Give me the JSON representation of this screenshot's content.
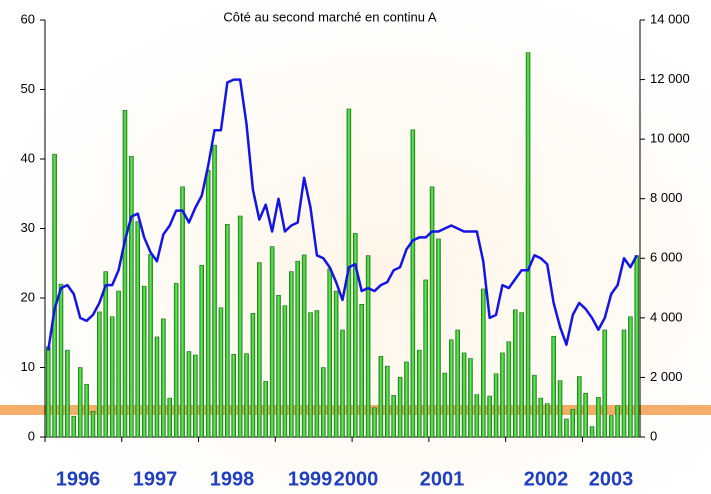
{
  "chart_data": {
    "type": "bar-line",
    "title": "Côté au second marché en continu A",
    "year_labels": [
      "1996",
      "1997",
      "1998",
      "1999",
      "2000",
      "2001",
      "2002",
      "2003"
    ],
    "ylim": [
      0,
      60
    ],
    "yticks": [
      0,
      10,
      20,
      30,
      40,
      50,
      60
    ],
    "y2lim": [
      0,
      14000
    ],
    "y2ticks": [
      0,
      {
        "value": 2000,
        "label": "2 000"
      },
      {
        "value": 4000,
        "label": "4 000"
      },
      {
        "value": 6000,
        "label": "6 000"
      },
      {
        "value": 8000,
        "label": "8 000"
      },
      {
        "value": 10000,
        "label": "10 000"
      },
      {
        "value": 12000,
        "label": "12 000"
      },
      {
        "value": 14000,
        "label": "14 000"
      }
    ],
    "series": [
      {
        "type": "bar",
        "color": "#33cc33",
        "values": [
          13,
          40.7,
          22,
          12.5,
          3,
          10,
          7.6,
          3.7,
          18,
          23.8,
          17.3,
          21,
          47,
          40.4,
          31,
          21.7,
          26.3,
          14.4,
          17,
          5.6,
          22.1,
          36,
          12.3,
          11.8,
          24.7,
          38.4,
          42,
          18.6,
          30.6,
          11.9,
          31.8,
          12,
          17.8,
          25.1,
          8,
          27.4,
          20.4,
          18.9,
          23.8,
          25.3,
          26.2,
          17.9,
          18.2,
          10,
          24.2,
          21,
          15.4,
          47.2,
          29.3,
          19.1,
          26.1,
          4.2,
          11.6,
          10.2,
          6,
          8.6,
          10.8,
          44.2,
          12.5,
          22.6,
          36,
          28.5,
          9.2,
          14,
          15.4,
          12.1,
          11.3,
          6.1,
          21.3,
          5.9,
          9.1,
          12.1,
          13.7,
          18.3,
          17.9,
          55.3,
          8.9,
          5.6,
          4.8,
          14.5,
          8.1,
          2.6,
          4,
          8.7,
          6.3,
          1.5,
          5.7,
          15.4,
          3.1,
          4.5,
          15.4,
          17.3,
          26.1
        ]
      },
      {
        "type": "line",
        "axis": "y2",
        "color": "#1414e6",
        "values": [
          2900,
          4300,
          5000,
          5100,
          4800,
          4000,
          3900,
          4100,
          4500,
          5100,
          5100,
          5600,
          6600,
          7400,
          7500,
          6700,
          6200,
          5900,
          6800,
          7100,
          7600,
          7600,
          7200,
          7700,
          8100,
          9100,
          10300,
          10300,
          11900,
          12000,
          12000,
          10500,
          8300,
          7300,
          7800,
          6900,
          8000,
          6900,
          7100,
          7200,
          8700,
          7700,
          6100,
          6000,
          5700,
          5200,
          4600,
          5700,
          5800,
          4900,
          5000,
          4900,
          5100,
          5200,
          5600,
          5700,
          6300,
          6600,
          6700,
          6700,
          6900,
          6900,
          7000,
          7100,
          7000,
          6900,
          6900,
          6900,
          5900,
          4000,
          4100,
          5100,
          5000,
          5300,
          5600,
          5600,
          6100,
          6000,
          5800,
          4500,
          3700,
          3100,
          4100,
          4500,
          4300,
          4000,
          3600,
          4000,
          4800,
          5100,
          6000,
          5700,
          6100
        ]
      }
    ]
  }
}
